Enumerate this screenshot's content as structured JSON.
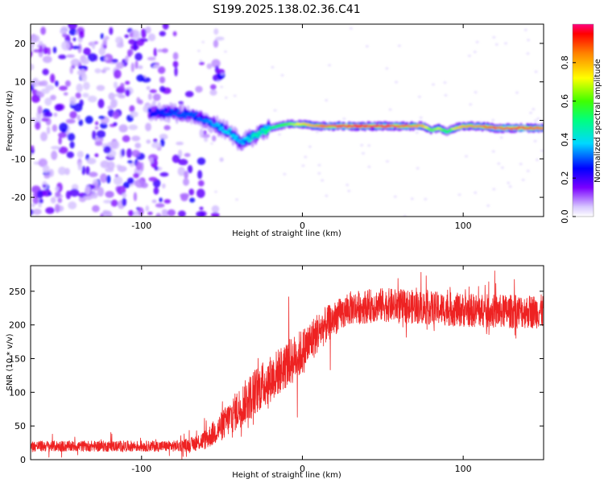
{
  "title": "S199.2025.138.02.36.C41",
  "colors": {
    "snr_line": "#ee2222",
    "axis": "#000000"
  },
  "chart_data": [
    {
      "type": "heatmap",
      "name": "spectrogram",
      "xlabel": "Height of straight line (km)",
      "ylabel": "Frequency (Hz)",
      "xlim": [
        -169,
        150
      ],
      "ylim": [
        -25,
        25
      ],
      "x_ticks": [
        -100,
        0,
        100
      ],
      "x_tick_labels": [
        "-100",
        "0",
        "100"
      ],
      "y_ticks": [
        -20,
        -10,
        0,
        10,
        20
      ],
      "y_tick_labels": [
        "-20",
        "-10",
        "0",
        "10",
        "20"
      ],
      "colorbar": {
        "label": "Normalized spectral amplitude",
        "range": [
          0,
          1
        ],
        "ticks": [
          0.0,
          0.2,
          0.4,
          0.6,
          0.8
        ],
        "tick_labels": [
          "0.0",
          "0.2",
          "0.4",
          "0.6",
          "0.8"
        ],
        "colormap": "rainbow"
      },
      "ridge": {
        "description": "dominant frequency track",
        "x": [
          -95,
          -80,
          -65,
          -55,
          -45,
          -38,
          -30,
          -20,
          -10,
          0,
          10,
          30,
          60,
          75,
          80,
          85,
          90,
          95,
          100,
          110,
          120,
          135,
          150
        ],
        "y": [
          2,
          2,
          1,
          -1,
          -3,
          -6,
          -4,
          -2,
          -1,
          -1,
          -1.5,
          -1.5,
          -1.5,
          -1.5,
          -2.5,
          -2,
          -3,
          -2,
          -1.5,
          -1.5,
          -2,
          -2,
          -2
        ],
        "amplitude": [
          0.25,
          0.3,
          0.3,
          0.35,
          0.4,
          0.35,
          0.45,
          0.5,
          0.6,
          0.75,
          0.85,
          0.95,
          0.9,
          0.8,
          0.6,
          0.7,
          0.5,
          0.75,
          0.8,
          0.85,
          0.9,
          0.95,
          0.85
        ]
      },
      "noise_region": {
        "x": [
          -169,
          -65
        ],
        "amplitude_range": [
          0.05,
          0.25
        ]
      }
    },
    {
      "type": "line",
      "name": "snr",
      "xlabel": "Height of straight line (km)",
      "ylabel": "SNR (10 * v/v)",
      "xlim": [
        -169,
        150
      ],
      "ylim": [
        0,
        288
      ],
      "x_ticks": [
        -100,
        0,
        100
      ],
      "x_tick_labels": [
        "-100",
        "0",
        "100"
      ],
      "y_ticks": [
        0,
        50,
        100,
        150,
        200,
        250
      ],
      "y_tick_labels": [
        "0",
        "50",
        "100",
        "150",
        "200",
        "250"
      ],
      "series": [
        {
          "name": "SNR",
          "x": [
            -169,
            -120,
            -80,
            -70,
            -60,
            -50,
            -40,
            -30,
            -20,
            -10,
            0,
            10,
            20,
            30,
            50,
            80,
            100,
            120,
            150
          ],
          "y": [
            20,
            20,
            20,
            22,
            30,
            50,
            75,
            100,
            120,
            140,
            160,
            190,
            210,
            225,
            230,
            225,
            222,
            220,
            220
          ],
          "noise_amplitude": [
            8,
            8,
            8,
            10,
            15,
            22,
            30,
            35,
            35,
            35,
            35,
            30,
            25,
            25,
            25,
            25,
            25,
            25,
            25
          ]
        }
      ]
    }
  ]
}
